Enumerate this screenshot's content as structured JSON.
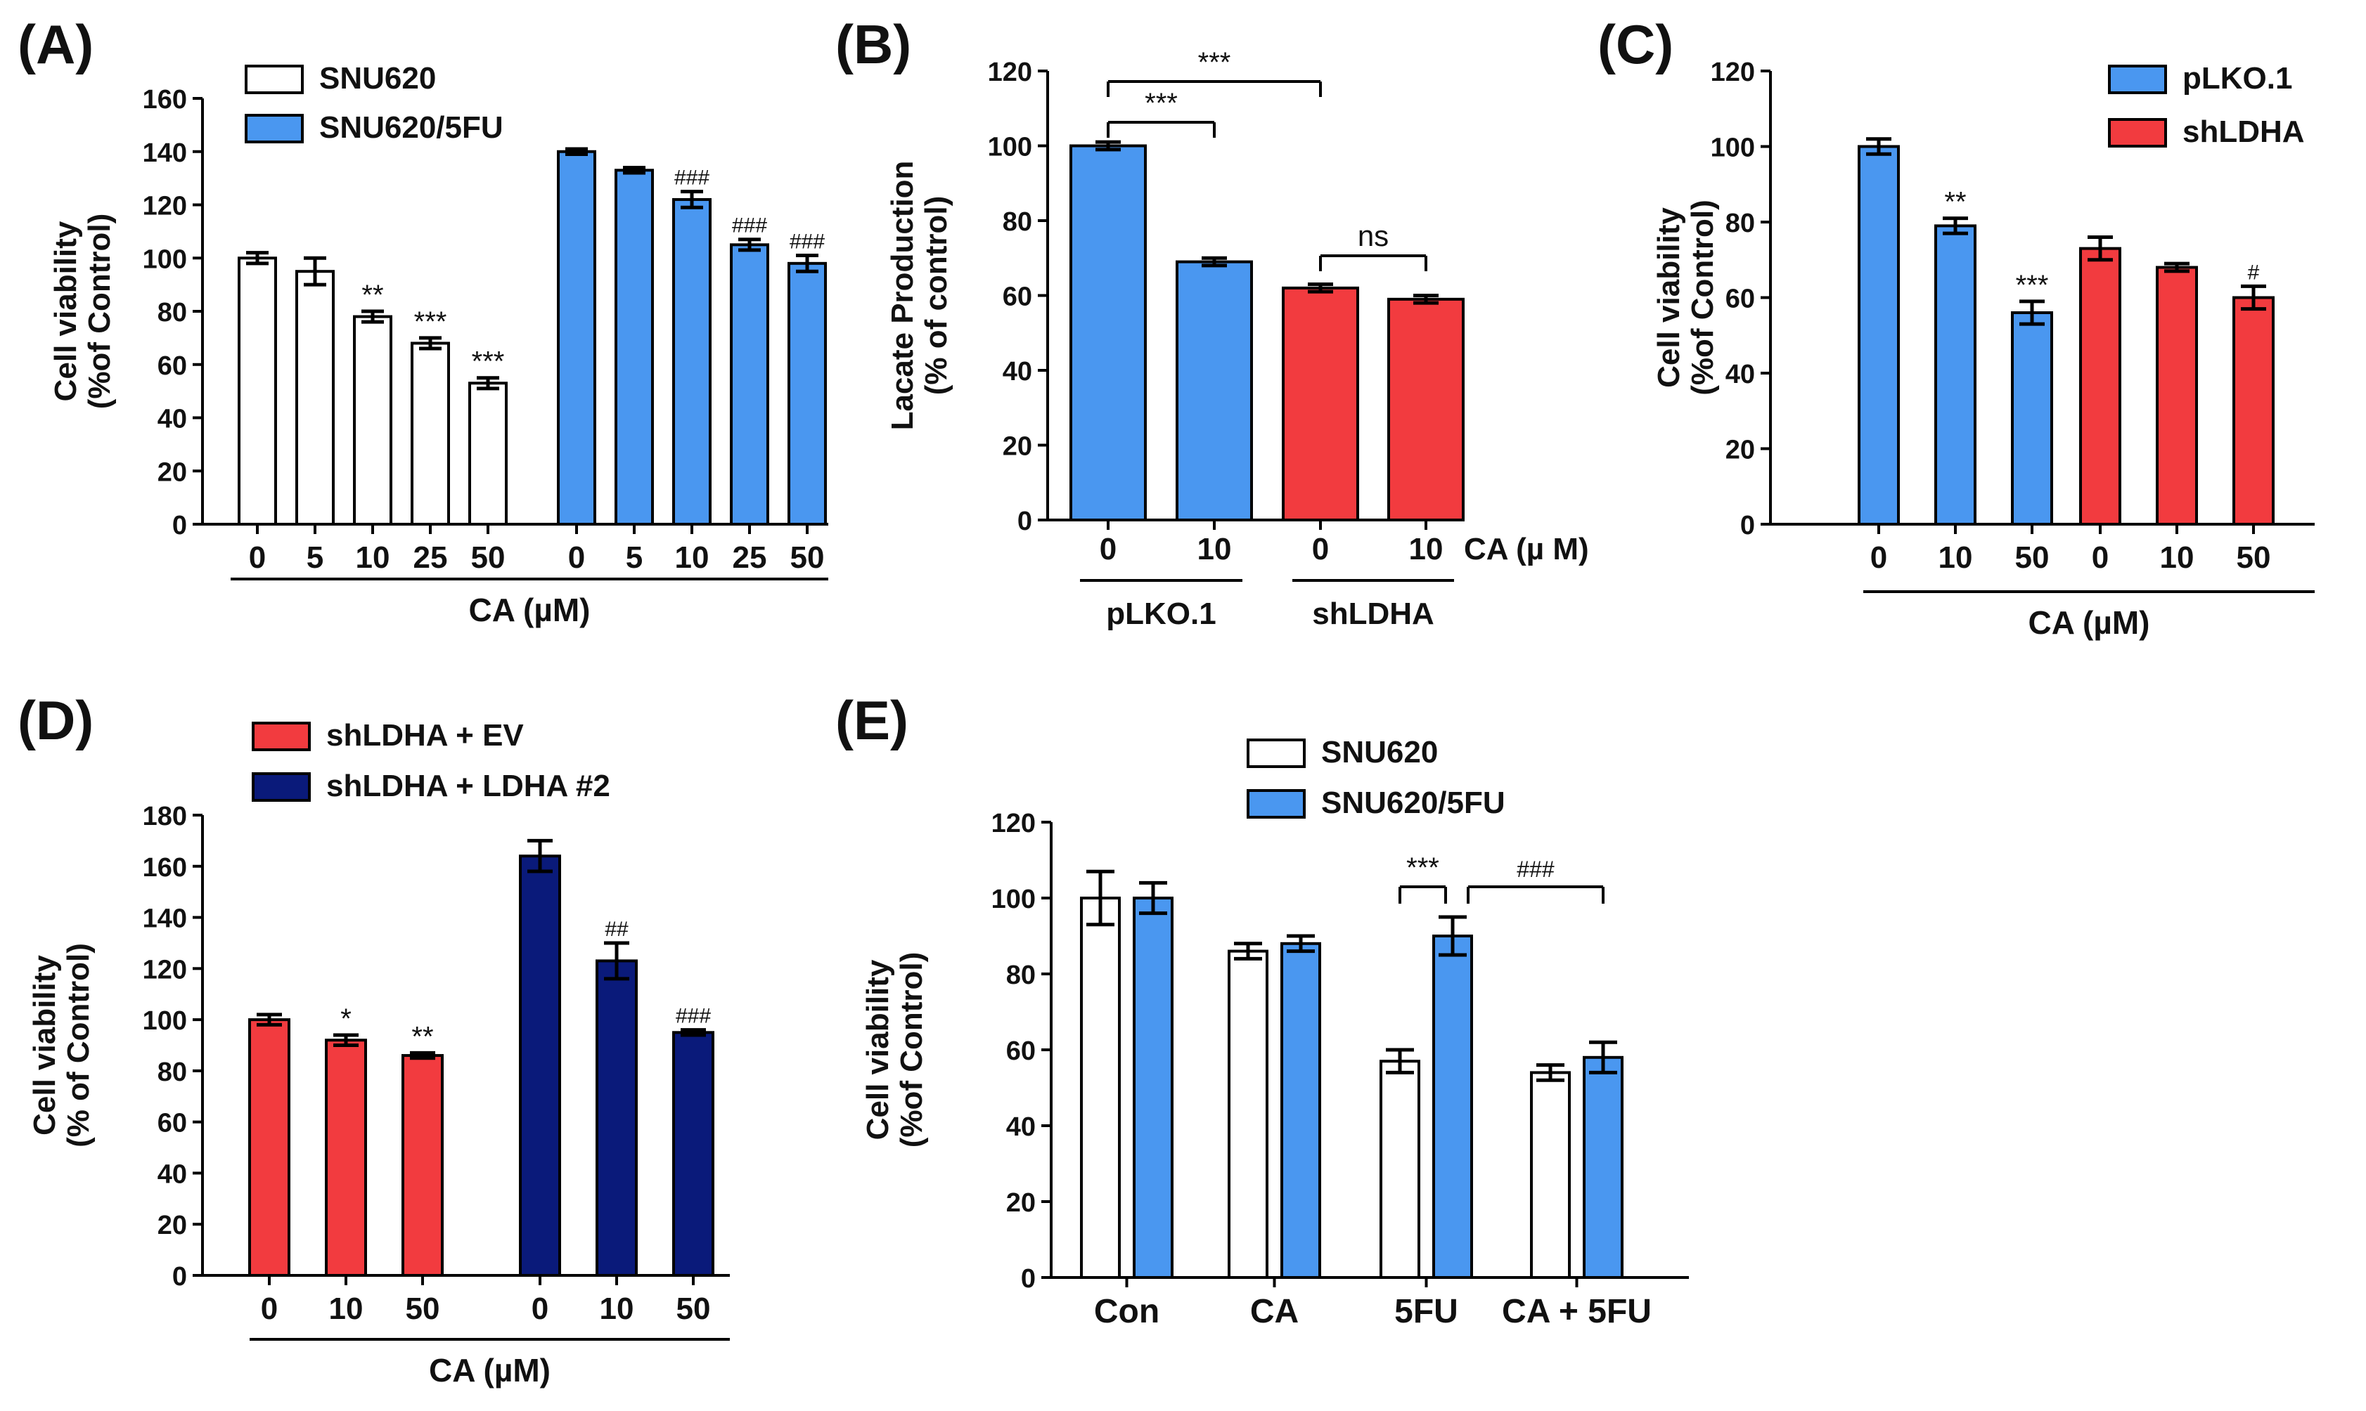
{
  "figure": {
    "colors": {
      "white": "#ffffff",
      "blue": "#4a97f0",
      "red": "#f23b3f",
      "navy": "#0a1a7a",
      "axis": "#000000"
    }
  },
  "chart_data": [
    {
      "id": "A",
      "type": "bar",
      "panel_label": "(A)",
      "ylabel": [
        "Cell viability",
        "(%of Control)"
      ],
      "ylim": [
        0,
        160
      ],
      "yticks": [
        0,
        20,
        40,
        60,
        80,
        100,
        120,
        140,
        160
      ],
      "xtitle": "CA (µM)",
      "legend": [
        {
          "label": "SNU620",
          "color": "white"
        },
        {
          "label": "SNU620/5FU",
          "color": "blue"
        }
      ],
      "groups": [
        {
          "series": "SNU620",
          "color": "white",
          "categories": [
            "0",
            "5",
            "10",
            "25",
            "50"
          ],
          "values": [
            100,
            95,
            78,
            68,
            53
          ],
          "errors": [
            2,
            5,
            2,
            2,
            2
          ],
          "sig": [
            "",
            "",
            "**",
            "***",
            "***"
          ]
        },
        {
          "series": "SNU620/5FU",
          "color": "blue",
          "categories": [
            "0",
            "5",
            "10",
            "25",
            "50"
          ],
          "values": [
            140,
            133,
            122,
            105,
            98
          ],
          "errors": [
            1,
            1,
            3,
            2,
            3
          ],
          "sig": [
            "",
            "",
            "###",
            "###",
            "###"
          ]
        }
      ]
    },
    {
      "id": "B",
      "type": "bar",
      "panel_label": "(B)",
      "ylabel": [
        "Lacate Production",
        "(% of control)"
      ],
      "ylim": [
        0,
        120
      ],
      "yticks": [
        0,
        20,
        40,
        60,
        80,
        100,
        120
      ],
      "xunit": "CA (µ M)",
      "groups": [
        {
          "series": "pLKO.1",
          "color": "blue",
          "categories": [
            "0",
            "10"
          ],
          "values": [
            100,
            69
          ],
          "errors": [
            1,
            1
          ],
          "group_label": "pLKO.1"
        },
        {
          "series": "shLDHA",
          "color": "red",
          "categories": [
            "0",
            "10"
          ],
          "values": [
            62,
            59
          ],
          "errors": [
            1,
            1
          ],
          "group_label": "shLDHA"
        }
      ],
      "brackets": [
        {
          "from": [
            0,
            0
          ],
          "to": [
            0,
            1
          ],
          "label": "***"
        },
        {
          "from": [
            0,
            0
          ],
          "to": [
            1,
            0
          ],
          "label": "***"
        },
        {
          "from": [
            1,
            0
          ],
          "to": [
            1,
            1
          ],
          "label": "ns"
        }
      ]
    },
    {
      "id": "C",
      "type": "bar",
      "panel_label": "(C)",
      "ylabel": [
        "Cell viability",
        "(%of Control)"
      ],
      "ylim": [
        0,
        120
      ],
      "yticks": [
        0,
        20,
        40,
        60,
        80,
        100,
        120
      ],
      "xtitle": "CA (µM)",
      "legend": [
        {
          "label": "pLKO.1",
          "color": "blue"
        },
        {
          "label": "shLDHA",
          "color": "red"
        }
      ],
      "groups": [
        {
          "series": "pLKO.1",
          "color": "blue",
          "categories": [
            "0",
            "10",
            "50"
          ],
          "values": [
            100,
            79,
            56
          ],
          "errors": [
            2,
            2,
            3
          ],
          "sig": [
            "",
            "**",
            "***"
          ]
        },
        {
          "series": "shLDHA",
          "color": "red",
          "categories": [
            "0",
            "10",
            "50"
          ],
          "values": [
            73,
            68,
            60
          ],
          "errors": [
            3,
            1,
            3
          ],
          "sig": [
            "",
            "",
            "#"
          ]
        }
      ]
    },
    {
      "id": "D",
      "type": "bar",
      "panel_label": "(D)",
      "ylabel": [
        "Cell viability",
        "(% of Control)"
      ],
      "ylim": [
        0,
        180
      ],
      "yticks": [
        0,
        20,
        40,
        60,
        80,
        100,
        120,
        140,
        160,
        180
      ],
      "xtitle": "CA (µM)",
      "legend": [
        {
          "label": "shLDHA + EV",
          "color": "red"
        },
        {
          "label": "shLDHA + LDHA #2",
          "color": "navy"
        }
      ],
      "groups": [
        {
          "series": "shLDHA + EV",
          "color": "red",
          "categories": [
            "0",
            "10",
            "50"
          ],
          "values": [
            100,
            92,
            86
          ],
          "errors": [
            2,
            2,
            1
          ],
          "sig": [
            "",
            "*",
            "**"
          ]
        },
        {
          "series": "shLDHA + LDHA #2",
          "color": "navy",
          "categories": [
            "0",
            "10",
            "50"
          ],
          "values": [
            164,
            123,
            95
          ],
          "errors": [
            6,
            7,
            1
          ],
          "sig": [
            "",
            "##",
            "###"
          ]
        }
      ]
    },
    {
      "id": "E",
      "type": "bar",
      "panel_label": "(E)",
      "ylabel": [
        "Cell viability",
        "(%of Control)"
      ],
      "ylim": [
        0,
        120
      ],
      "yticks": [
        0,
        20,
        40,
        60,
        80,
        100,
        120
      ],
      "legend": [
        {
          "label": "SNU620",
          "color": "white"
        },
        {
          "label": "SNU620/5FU",
          "color": "blue"
        }
      ],
      "categories": [
        "Con",
        "CA",
        "5FU",
        "CA + 5FU"
      ],
      "series": [
        {
          "name": "SNU620",
          "color": "white",
          "values": [
            100,
            86,
            57,
            54
          ],
          "errors": [
            7,
            2,
            3,
            2
          ]
        },
        {
          "name": "SNU620/5FU",
          "color": "blue",
          "values": [
            100,
            88,
            90,
            58
          ],
          "errors": [
            4,
            2,
            5,
            4
          ]
        }
      ],
      "brackets": [
        {
          "from": [
            2,
            0
          ],
          "to": [
            2,
            1
          ],
          "label": "***"
        },
        {
          "from": [
            2,
            1
          ],
          "to": [
            3,
            1
          ],
          "label": "###"
        }
      ]
    }
  ]
}
